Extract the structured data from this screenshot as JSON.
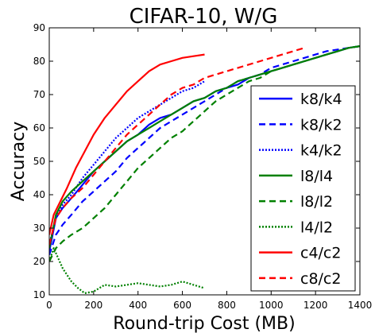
{
  "chart_data": {
    "type": "line",
    "title": "CIFAR-10, W/G",
    "xlabel": "Round-trip Cost (MB)",
    "ylabel": "Accuracy",
    "xlim": [
      0,
      1400
    ],
    "ylim": [
      10,
      90
    ],
    "xticks": [
      "0",
      "200",
      "400",
      "600",
      "800",
      "1000",
      "1200",
      "1400"
    ],
    "yticks": [
      "10",
      "20",
      "30",
      "40",
      "50",
      "60",
      "70",
      "80",
      "90"
    ],
    "grid": false,
    "legend_position": "lower-right",
    "series": [
      {
        "name": "k8/k4",
        "color": "#0000ff",
        "dash": "solid",
        "x": [
          0,
          30,
          60,
          100,
          150,
          200,
          250,
          300,
          350,
          400,
          450,
          500,
          550,
          600,
          650,
          700,
          750,
          800,
          850,
          900,
          950,
          1000,
          1050,
          1100,
          1150,
          1200,
          1250,
          1300,
          1350,
          1400
        ],
        "y": [
          23,
          33,
          36,
          39,
          43,
          47,
          50,
          53,
          56,
          58,
          61,
          63,
          64,
          66,
          68,
          69,
          71,
          72,
          73,
          75,
          76,
          77,
          78,
          79,
          80,
          81,
          82,
          83,
          84,
          84.5
        ]
      },
      {
        "name": "k8/k2",
        "color": "#0000ff",
        "dash": "dashed",
        "x": [
          0,
          30,
          60,
          100,
          150,
          200,
          250,
          300,
          350,
          400,
          450,
          500,
          550,
          600,
          650,
          700,
          750,
          800,
          850,
          900,
          950,
          1000,
          1050,
          1100,
          1150,
          1200,
          1250,
          1300,
          1350,
          1400
        ],
        "y": [
          22,
          28,
          31,
          34,
          38,
          41,
          44,
          47,
          51,
          54,
          57,
          60,
          62,
          64,
          66,
          68,
          70,
          72,
          74,
          75,
          76,
          78,
          79,
          80,
          81,
          82,
          83,
          83.5,
          84,
          84.5
        ]
      },
      {
        "name": "k4/k2",
        "color": "#0000ff",
        "dash": "dotted",
        "x": [
          0,
          30,
          60,
          100,
          150,
          200,
          250,
          300,
          350,
          400,
          450,
          500,
          550,
          600,
          650,
          700
        ],
        "y": [
          25,
          33,
          37,
          40,
          45,
          49,
          53,
          57,
          60,
          63,
          65,
          67,
          69,
          71,
          72,
          74
        ]
      },
      {
        "name": "l8/l4",
        "color": "#008000",
        "dash": "solid",
        "x": [
          0,
          30,
          60,
          100,
          150,
          200,
          250,
          300,
          350,
          400,
          450,
          500,
          550,
          600,
          650,
          700,
          750,
          800,
          850,
          900,
          950,
          1000,
          1050,
          1100,
          1150,
          1200,
          1250,
          1300,
          1350,
          1400
        ],
        "y": [
          24,
          34,
          38,
          41,
          44,
          47,
          50,
          53,
          56,
          58,
          60,
          62,
          64,
          66,
          68,
          69,
          71,
          72,
          74,
          75,
          76,
          77,
          78,
          79,
          80,
          81,
          82,
          83,
          84,
          84.5
        ]
      },
      {
        "name": "l8/l2",
        "color": "#008000",
        "dash": "dashed",
        "x": [
          0,
          30,
          60,
          100,
          150,
          200,
          250,
          300,
          350,
          400,
          450,
          500,
          550,
          600,
          650,
          700,
          750,
          800,
          850,
          900,
          950,
          1000,
          1050,
          1100,
          1150,
          1200,
          1250,
          1300,
          1350,
          1400
        ],
        "y": [
          20,
          24,
          26,
          28,
          30,
          33,
          36,
          40,
          44,
          48,
          51,
          54,
          57,
          59,
          62,
          65,
          68,
          70,
          72,
          74,
          75,
          77,
          78,
          79,
          80,
          81,
          82,
          83,
          84,
          84.5
        ]
      },
      {
        "name": "l4/l2",
        "color": "#008000",
        "dash": "dotted",
        "x": [
          0,
          20,
          40,
          60,
          80,
          100,
          130,
          160,
          200,
          250,
          300,
          350,
          400,
          450,
          500,
          550,
          600,
          650,
          700
        ],
        "y": [
          20,
          24,
          21,
          18,
          16,
          14,
          12,
          10.5,
          11,
          13,
          12.5,
          13,
          13.5,
          13,
          12.5,
          13,
          14,
          13,
          12
        ]
      },
      {
        "name": "c4/c2",
        "color": "#ff0000",
        "dash": "solid",
        "x": [
          0,
          20,
          50,
          80,
          120,
          160,
          200,
          250,
          300,
          350,
          400,
          450,
          500,
          550,
          600,
          650,
          700
        ],
        "y": [
          28,
          34,
          38,
          42,
          48,
          53,
          58,
          63,
          67,
          71,
          74,
          77,
          79,
          80,
          81,
          81.5,
          82
        ]
      },
      {
        "name": "c8/c2",
        "color": "#ff0000",
        "dash": "dashed",
        "x": [
          0,
          30,
          60,
          100,
          150,
          200,
          250,
          300,
          350,
          400,
          450,
          500,
          550,
          600,
          650,
          700,
          750,
          800,
          850,
          900,
          950,
          1000,
          1050,
          1100,
          1150
        ],
        "y": [
          25,
          33,
          36,
          39,
          42,
          46,
          50,
          54,
          58,
          61,
          64,
          67,
          70,
          72,
          73,
          75,
          76,
          77,
          78,
          79,
          80,
          81,
          82,
          83,
          84
        ]
      }
    ]
  }
}
